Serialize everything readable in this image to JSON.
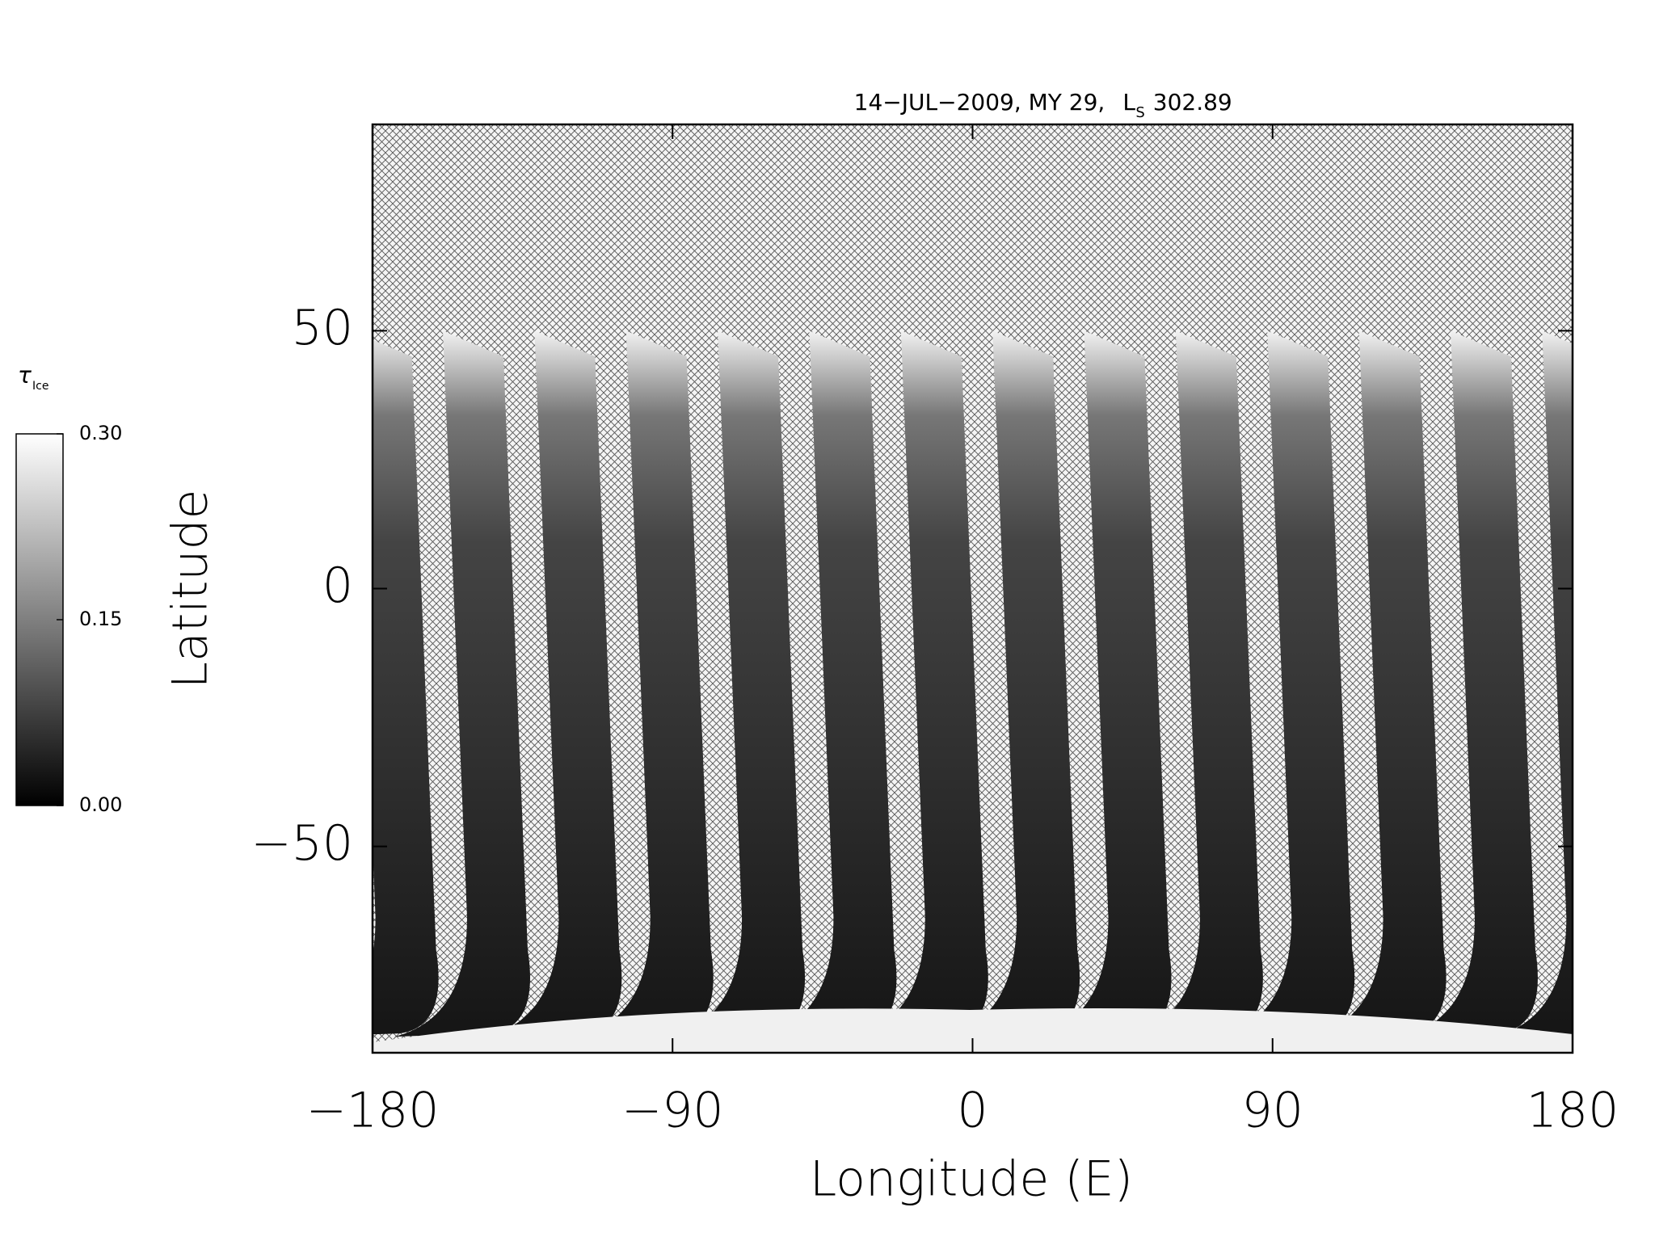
{
  "chart_data": {
    "type": "map",
    "title": "14−JUL−2009, MY 29,",
    "title_symbol": "L",
    "title_symbol_sub": "S",
    "title_value": "302.89",
    "x_label": "Longitude (E)",
    "y_label": "Latitude",
    "xlim": [
      -180,
      180
    ],
    "ylim": [
      -90,
      90
    ],
    "xticks": [
      {
        "value": -180,
        "label": "−180"
      },
      {
        "value": -90,
        "label": "−90"
      },
      0,
      90,
      180
    ],
    "yticks": [
      {
        "value": -50,
        "label": "−50"
      },
      0,
      50
    ],
    "colorbar": {
      "label": "τ",
      "label_sub": "Ice",
      "clim": [
        0,
        0.3
      ],
      "ticks": [
        {
          "value": 0,
          "label": "0.00"
        },
        0.15,
        {
          "value": 0.3,
          "label": "0.30"
        }
      ]
    }
  }
}
